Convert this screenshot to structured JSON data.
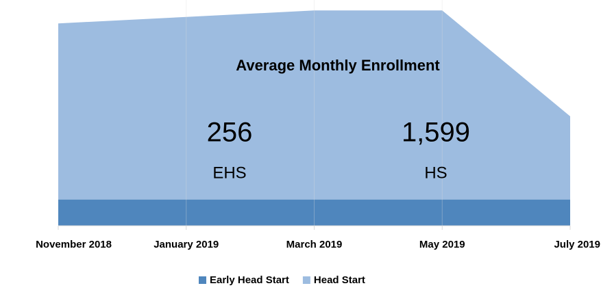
{
  "chart_data": {
    "type": "stacked-area",
    "categories": [
      "November 2018",
      "January 2019",
      "March 2019",
      "May 2019",
      "July 2019"
    ],
    "series": [
      {
        "name": "Early Head Start",
        "color": "#4f86bd",
        "values": [
          256,
          256,
          256,
          256,
          256
        ]
      },
      {
        "name": "Head Start",
        "color": "#9dbce0",
        "values": [
          1716,
          1779,
          1842,
          1842,
          811
        ]
      }
    ],
    "ylim": [
      0,
      2200
    ],
    "annotations": [
      {
        "text": "Average Monthly Enrollment"
      },
      {
        "text": "256"
      },
      {
        "text": "EHS"
      },
      {
        "text": "1,599"
      },
      {
        "text": "HS"
      }
    ],
    "legend": "bottom"
  }
}
